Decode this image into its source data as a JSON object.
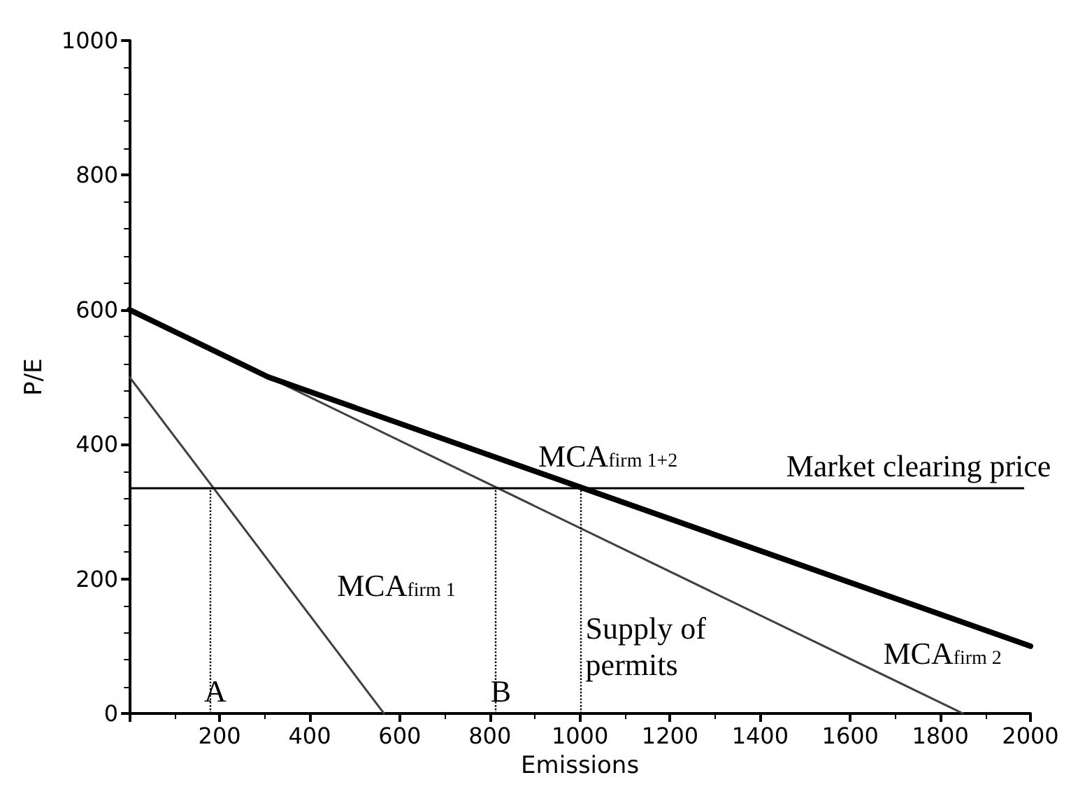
{
  "chart_data": {
    "type": "line",
    "xlabel": "Emissions",
    "ylabel": "P/E",
    "xlim": [
      0,
      2000
    ],
    "xticks": [
      {
        "value": 0,
        "label": null
      },
      200,
      400,
      600,
      800,
      1000,
      1200,
      1400,
      1600,
      1800,
      2000
    ],
    "ylim": [
      0,
      1000
    ],
    "yticks": [
      0,
      200,
      400,
      600,
      800,
      1000
    ],
    "series": [
      {
        "name": "MCA$_{firm 1}$",
        "color": "#404040",
        "x": [
          0,
          565
        ],
        "values": [
          500,
          0
        ]
      },
      {
        "name": "MCA$_{firm 2}$",
        "color": "#404040",
        "x": [
          0,
          1850
        ],
        "values": [
          600,
          0
        ]
      },
      {
        "name": "MCA$_{firm 1+2}$",
        "color": "#000000",
        "x": [
          0,
          308,
          2000
        ],
        "values": [
          600,
          500,
          100
        ]
      }
    ],
    "ref_lines": [
      {
        "axis": "y",
        "value": 335,
        "label": "Market clearing price",
        "color": "#000000",
        "line_style": "solid"
      },
      {
        "axis": "x",
        "value": 178,
        "label": "A",
        "color": "#000000",
        "line_style": "dotted"
      },
      {
        "axis": "x",
        "value": 812,
        "label": "B",
        "color": "#000000",
        "line_style": "dotted"
      },
      {
        "axis": "x",
        "value": 1000,
        "label": "Supply of permits",
        "color": "#000000",
        "line_style": "dotted"
      }
    ],
    "grid": false,
    "legend": false,
    "marker": "none",
    "line_style": "solid"
  }
}
